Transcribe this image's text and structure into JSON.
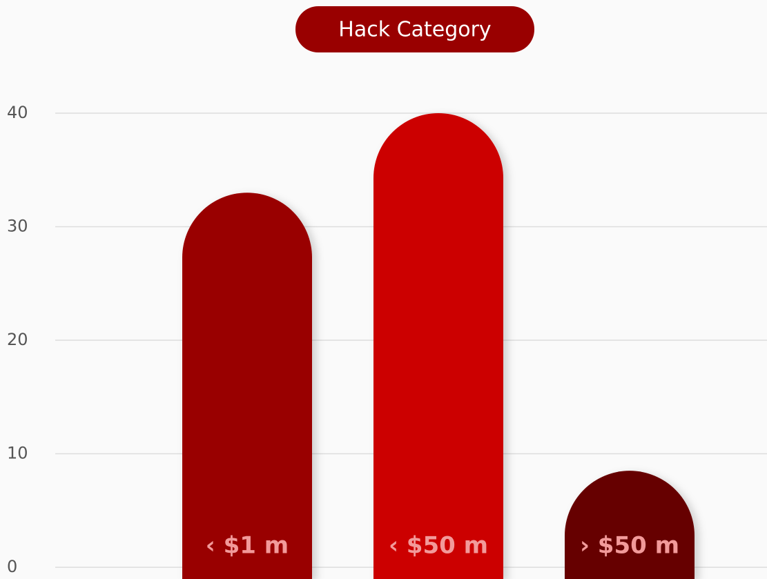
{
  "chart_data": {
    "type": "bar",
    "title": "Hack Category",
    "categories": [
      "‹ $1 m",
      "‹ $50 m",
      "› $50 m"
    ],
    "values": [
      33,
      40,
      8.5
    ],
    "colors": [
      "#990000",
      "#cc0000",
      "#660000"
    ],
    "ylim": [
      0,
      40
    ],
    "yticks": [
      0,
      10,
      20,
      30,
      40
    ],
    "grid": true
  }
}
